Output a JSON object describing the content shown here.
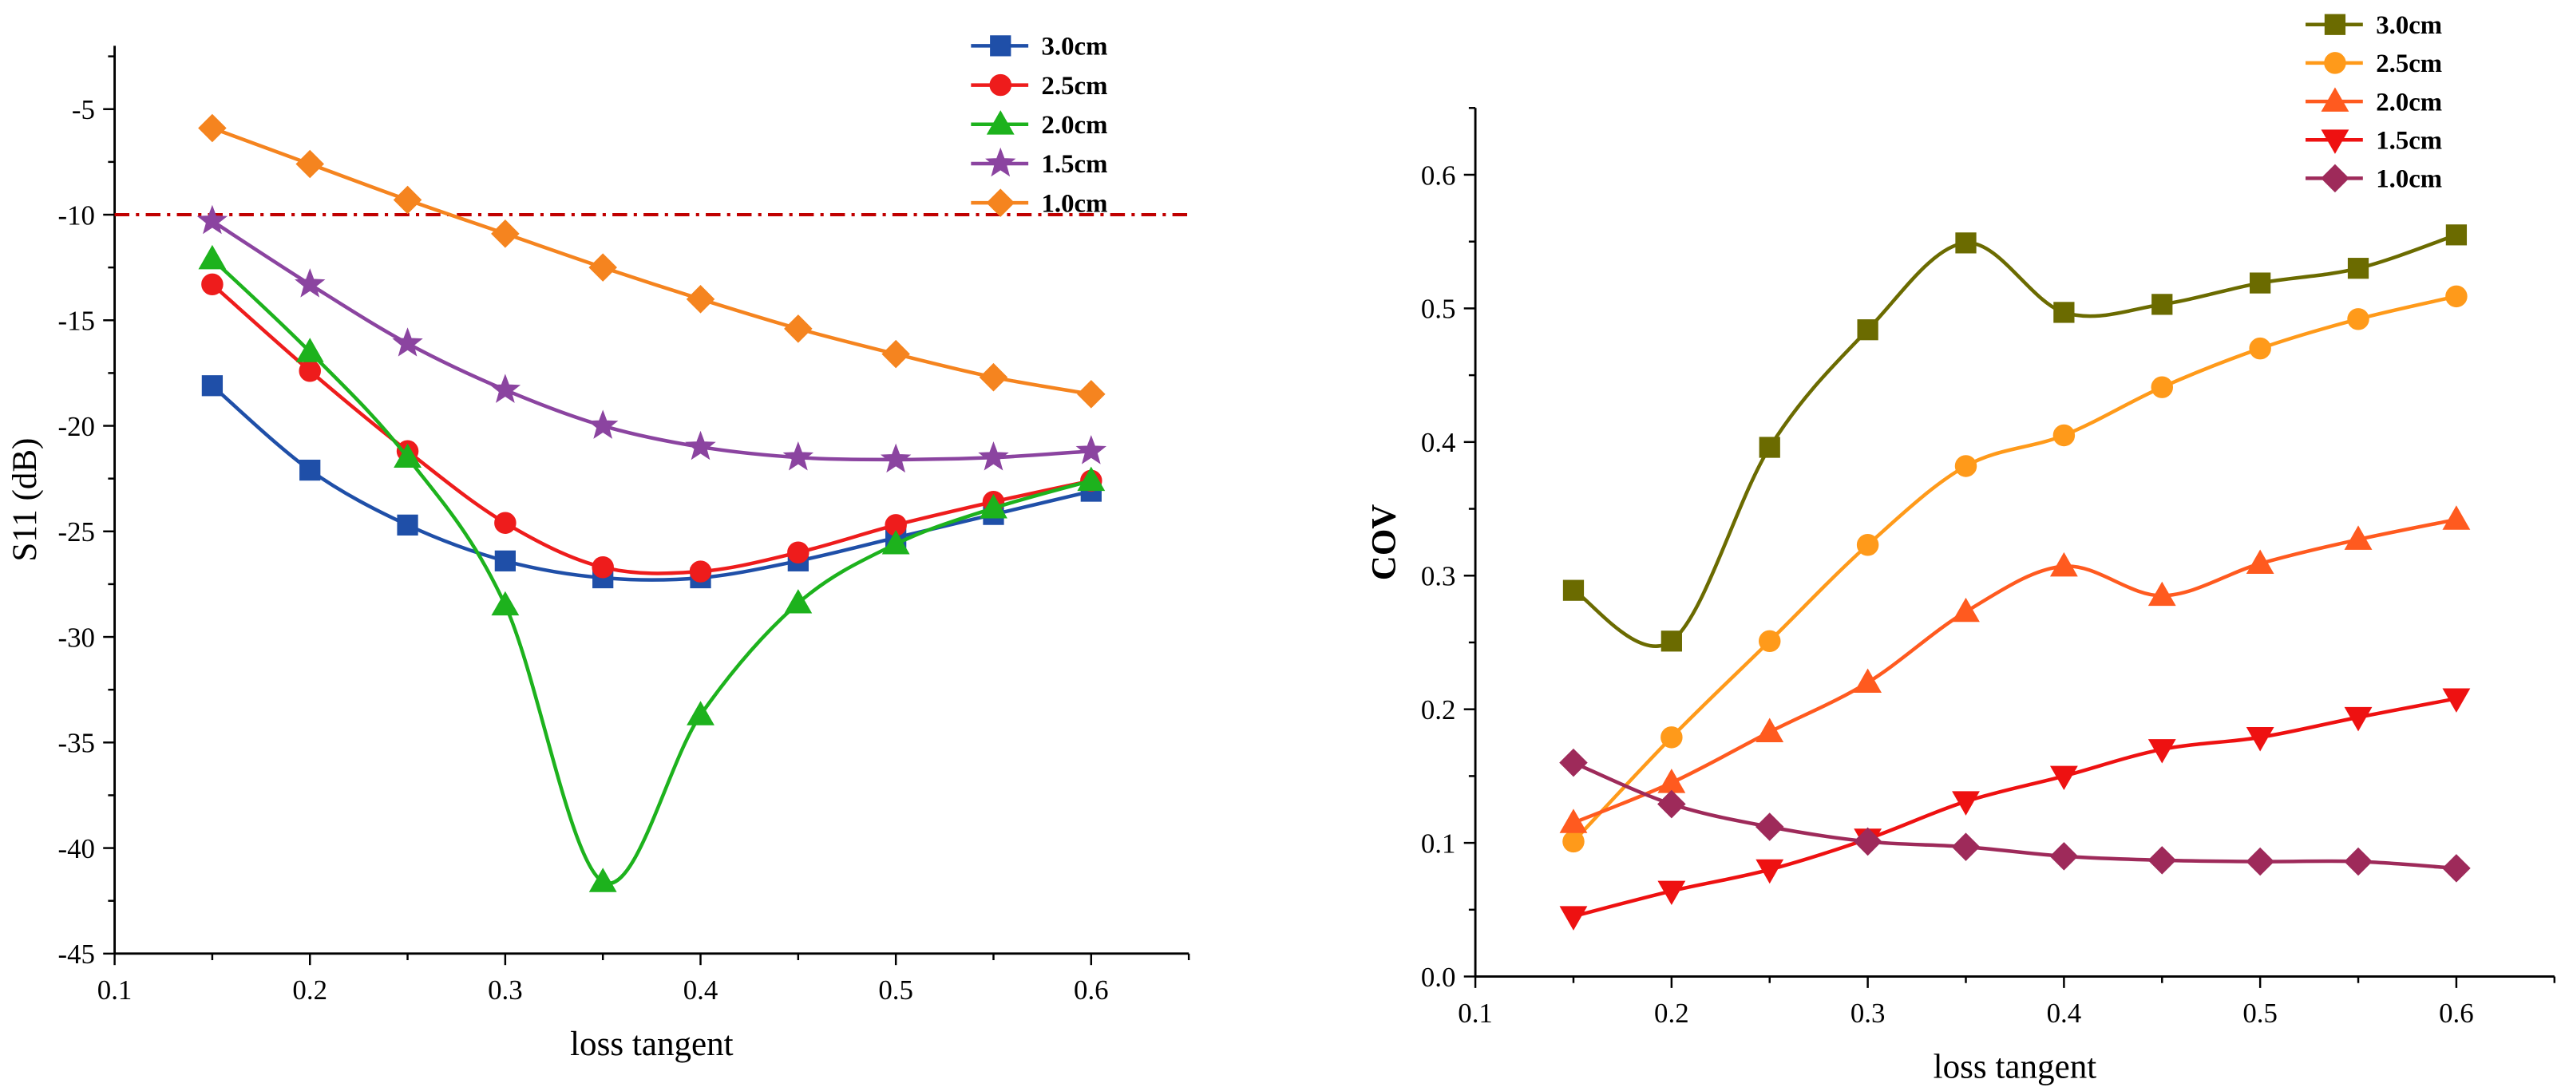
{
  "chart_data": [
    {
      "type": "line",
      "xlabel": "loss tangent",
      "ylabel": "S11 (dB)",
      "xlim": [
        0.1,
        0.65
      ],
      "ylim": [
        -45,
        -2
      ],
      "xticks": [
        0.1,
        0.2,
        0.3,
        0.4,
        0.5,
        0.6
      ],
      "xtick_labels": [
        "0.1",
        "0.2",
        "0.3",
        "0.4",
        "0.5",
        "0.6"
      ],
      "yticks": [
        -45,
        -40,
        -35,
        -30,
        -25,
        -20,
        -15,
        -10,
        -5
      ],
      "ytick_labels": [
        "-45",
        "-40",
        "-35",
        "-30",
        "-25",
        "-20",
        "-15",
        "-10",
        "-5"
      ],
      "grid": false,
      "legend_position": "top-right",
      "reference_line": {
        "y": -10,
        "color": "#c00000",
        "style": "dash-dot"
      },
      "x": [
        0.15,
        0.2,
        0.25,
        0.3,
        0.35,
        0.4,
        0.45,
        0.5,
        0.55,
        0.6
      ],
      "series": [
        {
          "name": "3.0cm",
          "color": "#1f4fa8",
          "marker": "square",
          "values": [
            -18.1,
            -22.1,
            -24.7,
            -26.4,
            -27.2,
            -27.2,
            -26.4,
            -25.3,
            -24.2,
            -23.1
          ]
        },
        {
          "name": "2.5cm",
          "color": "#ee1c1c",
          "marker": "circle",
          "values": [
            -13.3,
            -17.4,
            -21.2,
            -24.6,
            -26.7,
            -26.9,
            -26.0,
            -24.7,
            -23.6,
            -22.6
          ]
        },
        {
          "name": "2.0cm",
          "color": "#1db21d",
          "marker": "triangle-up",
          "values": [
            -12.1,
            -16.5,
            -21.5,
            -28.5,
            -41.6,
            -33.7,
            -28.4,
            -25.6,
            -23.9,
            -22.6
          ]
        },
        {
          "name": "1.5cm",
          "color": "#8b44a0",
          "marker": "star",
          "values": [
            -10.3,
            -13.3,
            -16.1,
            -18.3,
            -20.0,
            -21.0,
            -21.5,
            -21.6,
            -21.5,
            -21.2
          ]
        },
        {
          "name": "1.0cm",
          "color": "#f5841f",
          "marker": "diamond",
          "values": [
            -5.9,
            -7.6,
            -9.3,
            -10.9,
            -12.5,
            -14.0,
            -15.4,
            -16.6,
            -17.7,
            -18.5
          ]
        }
      ]
    },
    {
      "type": "line",
      "xlabel": "loss tangent",
      "ylabel": "COV",
      "xlim": [
        0.1,
        0.65
      ],
      "ylim": [
        0,
        0.65
      ],
      "xticks": [
        0.1,
        0.2,
        0.3,
        0.4,
        0.5,
        0.6
      ],
      "xtick_labels": [
        "0.1",
        "0.2",
        "0.3",
        "0.4",
        "0.5",
        "0.6"
      ],
      "yticks": [
        0.0,
        0.1,
        0.2,
        0.3,
        0.4,
        0.5,
        0.6
      ],
      "ytick_labels": [
        "0.0",
        "0.1",
        "0.2",
        "0.3",
        "0.4",
        "0.5",
        "0.6"
      ],
      "grid": false,
      "legend_position": "top-right",
      "x": [
        0.15,
        0.2,
        0.25,
        0.3,
        0.35,
        0.4,
        0.45,
        0.5,
        0.55,
        0.6
      ],
      "series": [
        {
          "name": "3.0cm",
          "color": "#6b6b00",
          "marker": "square",
          "values": [
            0.289,
            0.251,
            0.396,
            0.484,
            0.549,
            0.497,
            0.503,
            0.519,
            0.53,
            0.555
          ]
        },
        {
          "name": "2.5cm",
          "color": "#ff9a1a",
          "marker": "circle",
          "values": [
            0.101,
            0.179,
            0.251,
            0.323,
            0.382,
            0.405,
            0.441,
            0.47,
            0.492,
            0.509
          ]
        },
        {
          "name": "2.0cm",
          "color": "#ff5a1f",
          "marker": "triangle-up",
          "values": [
            0.115,
            0.145,
            0.183,
            0.22,
            0.273,
            0.307,
            0.285,
            0.309,
            0.327,
            0.342
          ]
        },
        {
          "name": "1.5cm",
          "color": "#ee1111",
          "marker": "triangle-down",
          "values": [
            0.045,
            0.064,
            0.08,
            0.103,
            0.131,
            0.15,
            0.17,
            0.179,
            0.194,
            0.208
          ]
        },
        {
          "name": "1.0cm",
          "color": "#9e2a5a",
          "marker": "diamond",
          "values": [
            0.16,
            0.129,
            0.112,
            0.101,
            0.097,
            0.09,
            0.087,
            0.086,
            0.086,
            0.081
          ]
        }
      ]
    }
  ]
}
